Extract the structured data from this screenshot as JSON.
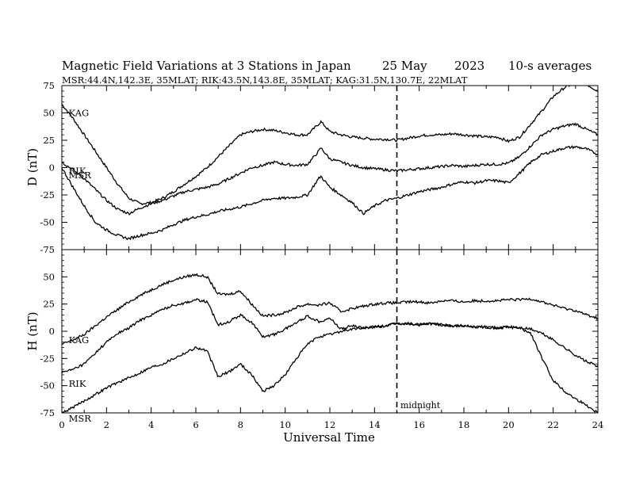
{
  "title": {
    "main": "Magnetic Field Variations at 3 Stations in Japan",
    "date": "25 May",
    "year": "2023",
    "averaging": "10-s averages",
    "stations_line": "MSR:44.4N,142.3E, 35MLAT;  RIK:43.5N,143.8E, 35MLAT;  KAG:31.5N,130.7E, 22MLAT"
  },
  "chart_data": [
    {
      "type": "line",
      "panel": "top",
      "ylabel": "D (nT)",
      "xlabel": "",
      "xlim": [
        0,
        24
      ],
      "ylim": [
        -75,
        75
      ],
      "yticks": [
        -75,
        -50,
        -25,
        0,
        25,
        50,
        75
      ],
      "series": [
        {
          "name": "KAG",
          "x": [
            0,
            0.5,
            1,
            1.5,
            2,
            2.5,
            3,
            3.5,
            4,
            4.5,
            5,
            5.5,
            6,
            6.5,
            7,
            7.5,
            8,
            8.5,
            9,
            9.5,
            10,
            10.5,
            11,
            11.5,
            11.6,
            12,
            12.5,
            13,
            13.5,
            14,
            14.5,
            15,
            15.5,
            16,
            16.5,
            17,
            17.5,
            18,
            18.5,
            19,
            19.5,
            20,
            20.5,
            21,
            21.5,
            22,
            22.5,
            23,
            23.5,
            24
          ],
          "y": [
            58,
            45,
            30,
            15,
            0,
            -15,
            -28,
            -33,
            -32,
            -28,
            -22,
            -15,
            -8,
            0,
            10,
            20,
            30,
            33,
            35,
            34,
            32,
            30,
            30,
            40,
            42,
            33,
            30,
            28,
            27,
            26,
            26,
            25,
            27,
            29,
            30,
            30,
            31,
            30,
            29,
            28,
            28,
            24,
            28,
            40,
            52,
            65,
            73,
            78,
            76,
            70
          ]
        },
        {
          "name": "RIK",
          "x": [
            0,
            0.5,
            1,
            1.5,
            2,
            2.5,
            3,
            3.5,
            4,
            4.5,
            5,
            5.5,
            6,
            6.5,
            7,
            7.5,
            8,
            8.5,
            9,
            9.5,
            10,
            10.5,
            11,
            11.5,
            11.6,
            12,
            12.5,
            13,
            13.5,
            14,
            14.5,
            15,
            15.5,
            16,
            16.5,
            17,
            17.5,
            18,
            18.5,
            19,
            19.5,
            20,
            20.5,
            21,
            21.5,
            22,
            22.5,
            23,
            23.5,
            24
          ],
          "y": [
            5,
            -2,
            -10,
            -20,
            -30,
            -38,
            -42,
            -37,
            -33,
            -30,
            -26,
            -22,
            -20,
            -18,
            -15,
            -10,
            -5,
            0,
            2,
            5,
            3,
            2,
            3,
            15,
            18,
            8,
            5,
            2,
            0,
            -1,
            -2,
            -3,
            -2,
            -1,
            0,
            1,
            2,
            1,
            2,
            3,
            3,
            4,
            10,
            20,
            30,
            35,
            38,
            40,
            35,
            30
          ]
        },
        {
          "name": "MSR",
          "x": [
            0,
            0.5,
            1,
            1.5,
            2,
            2.5,
            3,
            3.5,
            4,
            4.5,
            5,
            5.5,
            6,
            6.5,
            7,
            7.5,
            8,
            8.5,
            9,
            9.5,
            10,
            10.5,
            11,
            11.5,
            11.6,
            12,
            12.5,
            13,
            13.5,
            14,
            14.5,
            15,
            15.5,
            16,
            16.5,
            17,
            17.5,
            18,
            18.5,
            19,
            19.5,
            20,
            20.5,
            21,
            21.5,
            22,
            22.5,
            23,
            23.5,
            24
          ],
          "y": [
            0,
            -18,
            -35,
            -50,
            -57,
            -62,
            -65,
            -62,
            -60,
            -57,
            -52,
            -48,
            -45,
            -43,
            -40,
            -38,
            -36,
            -33,
            -30,
            -28,
            -28,
            -27,
            -25,
            -10,
            -8,
            -18,
            -25,
            -32,
            -42,
            -35,
            -30,
            -28,
            -25,
            -22,
            -20,
            -18,
            -15,
            -13,
            -14,
            -12,
            -12,
            -14,
            -5,
            5,
            12,
            15,
            18,
            19,
            17,
            12
          ]
        }
      ],
      "annotations": [
        {
          "text": "midnight",
          "x": 15
        }
      ]
    },
    {
      "type": "line",
      "panel": "bottom",
      "ylabel": "H (nT)",
      "xlabel": "Universal Time",
      "xlim": [
        0,
        24
      ],
      "ylim": [
        -75,
        75
      ],
      "yticks": [
        -75,
        -50,
        -25,
        0,
        25,
        50
      ],
      "xticks": [
        0,
        2,
        4,
        6,
        8,
        10,
        12,
        14,
        16,
        18,
        20,
        22,
        24
      ],
      "series": [
        {
          "name": "KAG",
          "x": [
            0,
            0.5,
            1,
            1.5,
            2,
            2.5,
            3,
            3.5,
            4,
            4.5,
            5,
            5.5,
            6,
            6.5,
            7,
            7.5,
            8,
            8.5,
            9,
            9.5,
            10,
            10.5,
            11,
            11.5,
            12,
            12.5,
            13,
            13.5,
            14,
            14.5,
            15,
            15.5,
            16,
            16.5,
            17,
            17.5,
            18,
            18.5,
            19,
            19.5,
            20,
            20.5,
            21,
            21.5,
            22,
            22.5,
            23,
            23.5,
            24
          ],
          "y": [
            -12,
            -8,
            -3,
            5,
            13,
            20,
            27,
            33,
            38,
            43,
            47,
            50,
            52,
            50,
            34,
            34,
            37,
            25,
            14,
            15,
            17,
            22,
            25,
            24,
            26,
            18,
            21,
            23,
            25,
            26,
            26,
            27,
            27,
            26,
            28,
            28,
            27,
            28,
            28,
            28,
            29,
            29,
            30,
            27,
            24,
            21,
            19,
            15,
            12
          ]
        },
        {
          "name": "RIK",
          "x": [
            0,
            0.5,
            1,
            1.5,
            2,
            2.5,
            3,
            3.5,
            4,
            4.5,
            5,
            5.5,
            6,
            6.5,
            7,
            7.5,
            8,
            8.5,
            9,
            9.5,
            10,
            10.5,
            11,
            11.5,
            12,
            12.5,
            13,
            13.5,
            14,
            14.5,
            15,
            15.5,
            16,
            16.5,
            17,
            17.5,
            18,
            18.5,
            19,
            19.5,
            20,
            20.5,
            21,
            21.5,
            22,
            22.5,
            23,
            23.5,
            24
          ],
          "y": [
            -38,
            -35,
            -30,
            -20,
            -10,
            -2,
            3,
            10,
            15,
            20,
            24,
            26,
            29,
            27,
            6,
            9,
            15,
            8,
            -5,
            -3,
            2,
            8,
            14,
            9,
            12,
            2,
            5,
            3,
            4,
            5,
            7,
            7,
            6,
            7,
            6,
            5,
            5,
            4,
            4,
            3,
            4,
            3,
            2,
            -2,
            -8,
            -15,
            -22,
            -28,
            -32
          ]
        },
        {
          "name": "MSR",
          "x": [
            0,
            0.5,
            1,
            1.5,
            2,
            2.5,
            3,
            3.5,
            4,
            4.5,
            5,
            5.5,
            6,
            6.5,
            7,
            7.5,
            8,
            8.5,
            9,
            9.5,
            10,
            10.5,
            11,
            11.5,
            12,
            12.5,
            13,
            13.5,
            14,
            14.5,
            15,
            15.5,
            16,
            16.5,
            17,
            17.5,
            18,
            18.5,
            19,
            19.5,
            20,
            20.5,
            21,
            21.5,
            22,
            22.5,
            23,
            23.5,
            24
          ],
          "y": [
            -75,
            -70,
            -64,
            -58,
            -52,
            -47,
            -43,
            -38,
            -33,
            -30,
            -25,
            -20,
            -15,
            -18,
            -42,
            -37,
            -30,
            -40,
            -55,
            -50,
            -40,
            -25,
            -12,
            -5,
            -3,
            0,
            2,
            3,
            4,
            5,
            7,
            7,
            6,
            7,
            6,
            5,
            5,
            4,
            4,
            3,
            4,
            3,
            -2,
            -25,
            -45,
            -55,
            -62,
            -68,
            -75
          ]
        }
      ]
    }
  ]
}
